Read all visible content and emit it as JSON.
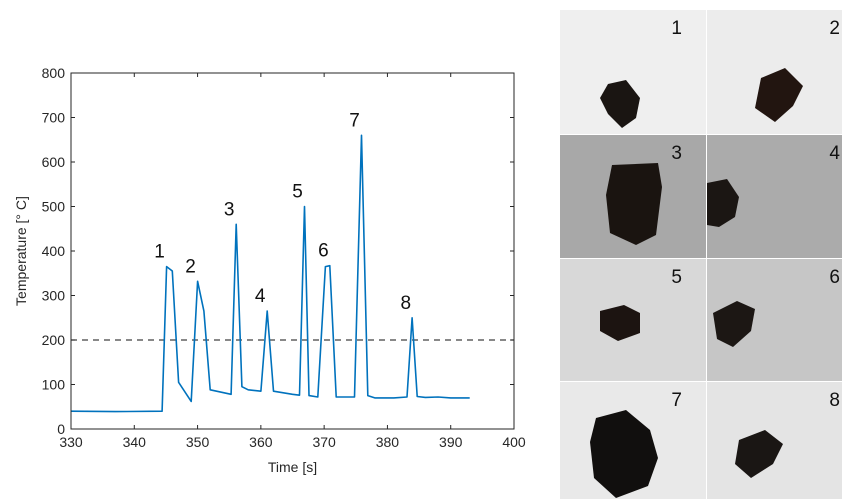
{
  "chart_data": {
    "type": "line",
    "xlabel": "Time [s]",
    "ylabel": "Temperature [° C]",
    "xlim": [
      330,
      400
    ],
    "ylim": [
      0,
      800
    ],
    "xticks": [
      330,
      340,
      350,
      360,
      370,
      380,
      390,
      400
    ],
    "yticks": [
      0,
      100,
      200,
      300,
      400,
      500,
      600,
      700,
      800
    ],
    "xtick_labels": [
      "330",
      "340",
      "350",
      "360",
      "370",
      "380",
      "390",
      "400"
    ],
    "ytick_labels": [
      "0",
      "100",
      "200",
      "300",
      "400",
      "500",
      "600",
      "700",
      "800"
    ],
    "line_color": "#0072BD",
    "threshold": {
      "value": 200,
      "style": "dashed",
      "color": "#404040"
    },
    "series": [
      {
        "x": [
          330,
          337,
          344.4,
          345.1,
          346,
          347,
          349,
          350,
          351,
          352,
          355.3,
          356.1,
          357,
          358,
          360,
          361,
          362,
          365,
          366.1,
          366.9,
          367.6,
          369,
          370.2,
          370.9,
          371.9,
          372.9,
          374.8,
          375.9,
          376.9,
          378,
          381,
          383.1,
          383.9,
          384.7,
          386,
          388,
          390,
          393
        ],
        "y": [
          40,
          39,
          40,
          365,
          355,
          105,
          62,
          332,
          265,
          88,
          78,
          460,
          95,
          88,
          85,
          265,
          85,
          78,
          76,
          500,
          75,
          72,
          365,
          367,
          72,
          72,
          72,
          660,
          75,
          70,
          70,
          72,
          250,
          73,
          71,
          72,
          70,
          70
        ]
      }
    ],
    "annotations": [
      {
        "text": "1",
        "x": 345.1,
        "y": 365
      },
      {
        "text": "2",
        "x": 350,
        "y": 332
      },
      {
        "text": "3",
        "x": 356.1,
        "y": 460
      },
      {
        "text": "4",
        "x": 361,
        "y": 265
      },
      {
        "text": "5",
        "x": 366.9,
        "y": 500
      },
      {
        "text": "6",
        "x": 371,
        "y": 367
      },
      {
        "text": "7",
        "x": 375.9,
        "y": 660
      },
      {
        "text": "8",
        "x": 384,
        "y": 250
      }
    ]
  },
  "panels": [
    {
      "label": "1",
      "bg": "#efefef",
      "blob": "#1a1512"
    },
    {
      "label": "2",
      "bg": "#ececec",
      "blob": "#221510"
    },
    {
      "label": "3",
      "bg": "#a8a8a8",
      "blob": "#1a1410"
    },
    {
      "label": "4",
      "bg": "#ababab",
      "blob": "#1b1613"
    },
    {
      "label": "5",
      "bg": "#d8d8d8",
      "blob": "#1c1411"
    },
    {
      "label": "6",
      "bg": "#c6c6c6",
      "blob": "#1c1714"
    },
    {
      "label": "7",
      "bg": "#e9e9e9",
      "blob": "#110f0e"
    },
    {
      "label": "8",
      "bg": "#e4e4e4",
      "blob": "#1a1614"
    }
  ]
}
